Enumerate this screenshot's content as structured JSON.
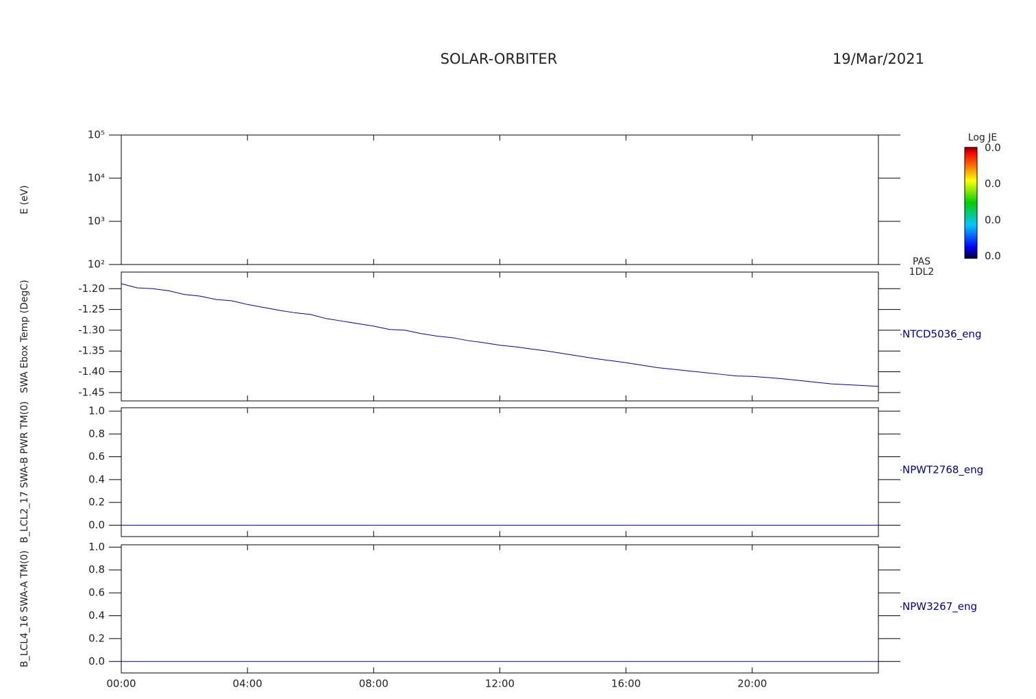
{
  "header": {
    "title": "SOLAR-ORBITER",
    "date": "19/Mar/2021"
  },
  "chart_data": [
    {
      "type": "spectrogram",
      "ylabel": "E (eV)",
      "log_y": true,
      "ylim": [
        100,
        100000
      ],
      "yticks": [
        {
          "value": 100,
          "label": "10²"
        },
        {
          "value": 1000,
          "label": "10³"
        },
        {
          "value": 10000,
          "label": "10⁴"
        },
        {
          "value": 100000,
          "label": "10⁵"
        }
      ],
      "right_label": [
        "PAS",
        "1DL2"
      ],
      "colorbar": {
        "title": "Log JE",
        "labels": [
          "0.0",
          "0.0",
          "0.0",
          "0.0"
        ]
      }
    },
    {
      "type": "line",
      "ylabel": "SWA Ebox Temp (DegC)",
      "ylim": [
        -1.47,
        -1.16
      ],
      "yticks": [
        {
          "value": -1.2,
          "label": "-1.20"
        },
        -1.25,
        {
          "value": -1.3,
          "label": "-1.30"
        },
        -1.35,
        {
          "value": -1.4,
          "label": "-1.40"
        },
        -1.45
      ],
      "series": [
        {
          "name": "NTCD5036_eng",
          "color": "#00008b",
          "x": [
            0,
            0.5,
            1,
            1.5,
            2,
            2.5,
            3,
            3.5,
            4,
            4.5,
            5,
            5.5,
            6,
            6.5,
            7,
            7.5,
            8,
            8.5,
            9,
            9.5,
            10,
            10.5,
            11,
            11.5,
            12,
            12.5,
            13,
            13.5,
            14,
            14.5,
            15,
            15.5,
            16,
            16.5,
            17,
            17.5,
            18,
            18.5,
            19,
            19.5,
            20,
            20.5,
            21,
            21.5,
            22,
            22.5,
            23,
            23.5,
            24
          ],
          "values": [
            -1.188,
            -1.198,
            -1.2,
            -1.205,
            -1.214,
            -1.218,
            -1.226,
            -1.229,
            -1.238,
            -1.245,
            -1.252,
            -1.258,
            -1.262,
            -1.272,
            -1.278,
            -1.284,
            -1.29,
            -1.298,
            -1.3,
            -1.308,
            -1.314,
            -1.318,
            -1.325,
            -1.33,
            -1.336,
            -1.34,
            -1.345,
            -1.35,
            -1.356,
            -1.362,
            -1.368,
            -1.373,
            -1.378,
            -1.384,
            -1.39,
            -1.394,
            -1.398,
            -1.402,
            -1.406,
            -1.41,
            -1.411,
            -1.414,
            -1.417,
            -1.421,
            -1.425,
            -1.429,
            -1.431,
            -1.433,
            -1.435
          ]
        }
      ]
    },
    {
      "type": "line",
      "ylabel": "B_LCL2_17 SWA-B PWR TM(0)",
      "ylim": [
        -0.1,
        1.03
      ],
      "yticks": [
        {
          "value": 0,
          "label": "0.0"
        },
        0.2,
        0.4,
        0.6,
        0.8,
        {
          "value": 1,
          "label": "1.0"
        }
      ],
      "series": [
        {
          "name": "NPWT2768_eng",
          "color": "#00008b",
          "x": [
            0,
            24
          ],
          "values": [
            0,
            0
          ]
        }
      ]
    },
    {
      "type": "line",
      "ylabel": "B_LCL4_16 SWA-A TM(0)",
      "ylim": [
        -0.1,
        1.02
      ],
      "yticks": [
        {
          "value": 0,
          "label": "0.0"
        },
        0.2,
        0.4,
        0.6,
        0.8,
        {
          "value": 1,
          "label": "1.0"
        }
      ],
      "series": [
        {
          "name": "NPW3267_eng",
          "color": "#00008b",
          "x": [
            0,
            24
          ],
          "values": [
            0,
            0
          ]
        }
      ],
      "xlim": [
        0,
        24
      ],
      "xticks": [
        {
          "value": 0,
          "label": "00:00"
        },
        {
          "value": 4,
          "label": "04:00"
        },
        {
          "value": 8,
          "label": "08:00"
        },
        {
          "value": 12,
          "label": "12:00"
        },
        {
          "value": 16,
          "label": "16:00"
        },
        {
          "value": 20,
          "label": "20:00"
        }
      ]
    }
  ]
}
